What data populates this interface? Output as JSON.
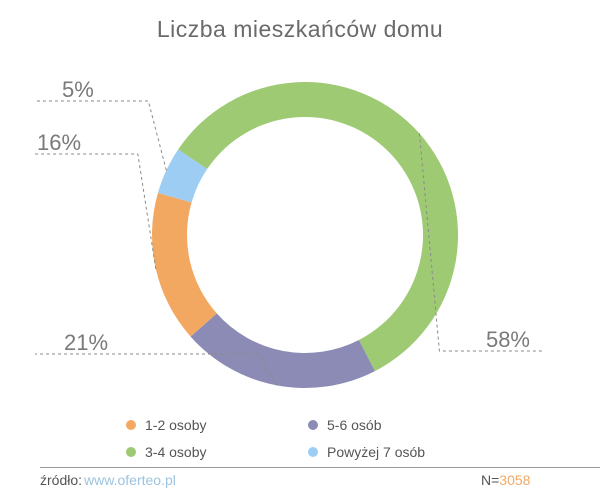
{
  "chart_data": {
    "type": "pie",
    "title": "Liczba mieszkańców domu",
    "categories": [
      "3-4 osoby",
      "5-6 osób",
      "1-2 osoby",
      "Powyżej 7 osób"
    ],
    "values": [
      58,
      21,
      16,
      5
    ],
    "labels": [
      "58%",
      "21%",
      "16%",
      "5%"
    ],
    "colors": [
      "#9dca72",
      "#8b8bb6",
      "#f3a862",
      "#9ecdf3"
    ],
    "donut": true,
    "legend": [
      {
        "label": "1-2 osoby",
        "color": "#f3a862"
      },
      {
        "label": "5-6 osób",
        "color": "#8b8bb6"
      },
      {
        "label": "3-4 osoby",
        "color": "#9dca72"
      },
      {
        "label": "Powyżej 7 osób",
        "color": "#9ecdf3"
      }
    ],
    "legend_position": "bottom"
  },
  "footer": {
    "source_label": "źródło:",
    "source_url": "www.oferteo.pl",
    "sample_label": "N=",
    "sample_value": "3058"
  }
}
